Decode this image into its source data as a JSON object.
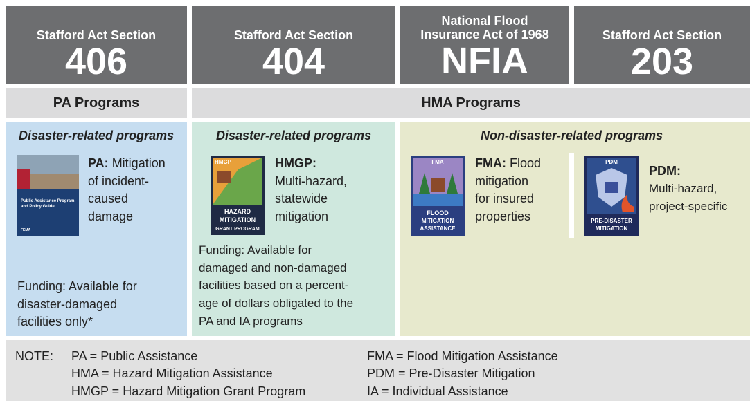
{
  "headers": [
    {
      "subtitle_lines": [
        "Stafford Act Section"
      ],
      "title": "406"
    },
    {
      "subtitle_lines": [
        "Stafford Act Section"
      ],
      "title": "404"
    },
    {
      "subtitle_lines": [
        "National Flood",
        "Insurance Act of 1968"
      ],
      "title": "NFIA"
    },
    {
      "subtitle_lines": [
        "Stafford Act Section"
      ],
      "title": "203"
    }
  ],
  "program_groups": [
    {
      "label": "PA Programs"
    },
    {
      "label": "HMA Programs"
    }
  ],
  "panels": [
    {
      "heading": "Disaster-related programs",
      "programs": [
        {
          "code": "PA:",
          "description_lines": [
            "Mitigation",
            "of incident-",
            "caused",
            "damage"
          ],
          "icon_text": [
            "Public Assistance Program",
            "and Policy Guide",
            "FEMA"
          ]
        }
      ],
      "funding_lines": [
        "Funding: Available for",
        "disaster-damaged",
        "facilities only*"
      ]
    },
    {
      "heading": "Disaster-related programs",
      "programs": [
        {
          "code": "HMGP:",
          "description_lines": [
            "Multi-hazard,",
            "statewide",
            "mitigation"
          ],
          "icon_text": [
            "HMGP",
            "HAZARD",
            "MITIGATION",
            "GRANT PROGRAM"
          ]
        }
      ],
      "funding_lines": [
        "Funding: Available for",
        "damaged and non-damaged",
        "facilities based on a percent-",
        "age of dollars obligated to the",
        "PA and IA programs"
      ]
    },
    {
      "heading": "Non-disaster-related programs",
      "programs": [
        {
          "code": "FMA:",
          "description_lines": [
            "Flood",
            "mitigation",
            "for insured",
            "properties"
          ],
          "icon_text": [
            "FMA",
            "FLOOD",
            "MITIGATION",
            "ASSISTANCE"
          ]
        },
        {
          "code": "PDM:",
          "description_lines": [
            "Multi-hazard,",
            "project-specific"
          ],
          "icon_text": [
            "PDM",
            "PRE-DISASTER",
            "MITIGATION"
          ]
        }
      ]
    }
  ],
  "note": {
    "label": "NOTE:",
    "items": [
      "PA = Public Assistance",
      "HMA = Hazard Mitigation Assistance",
      "HMGP = Hazard Mitigation Grant Program",
      "FMA = Flood Mitigation Assistance",
      "PDM = Pre-Disaster Mitigation",
      "IA = Individual Assistance"
    ]
  }
}
